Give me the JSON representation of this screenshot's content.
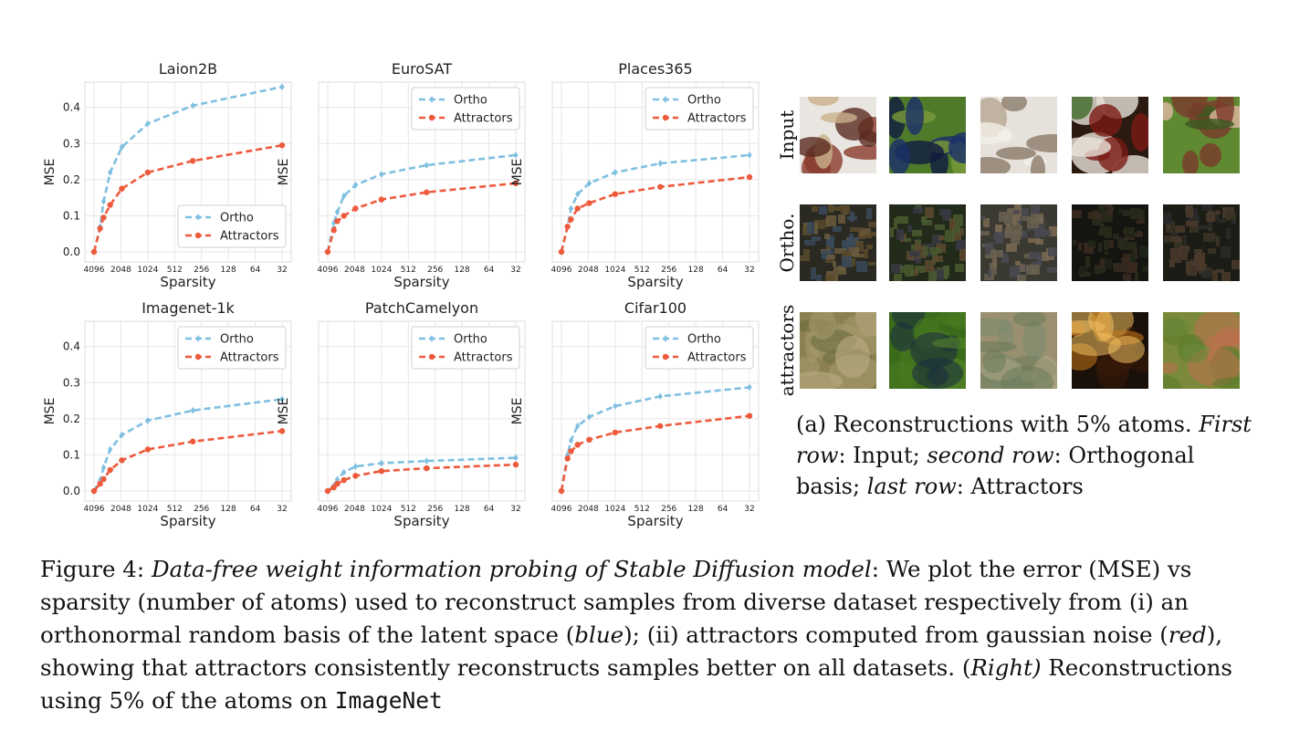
{
  "chart_data": [
    {
      "type": "line",
      "title": "Laion2B",
      "xlabel": "Sparsity",
      "ylabel": "MSE",
      "x_ticks": [
        "4096",
        "2048",
        "1024",
        "512",
        "256",
        "128",
        "64",
        "32"
      ],
      "y_ticks": [
        "0.0",
        "0.1",
        "0.2",
        "0.3",
        "0.4"
      ],
      "ylim": [
        0,
        0.47
      ],
      "legend": "lower-right",
      "grid": true,
      "series": [
        {
          "name": "Ortho",
          "color": "#7FBFE0",
          "marker": "diamond",
          "x": [
            4096,
            3500,
            3200,
            2700,
            2000,
            1024,
            320,
            32
          ],
          "y": [
            0.0,
            0.07,
            0.14,
            0.22,
            0.29,
            0.355,
            0.405,
            0.457
          ]
        },
        {
          "name": "Attractors",
          "color": "#EE5A3C",
          "marker": "circle",
          "x": [
            4096,
            3500,
            3200,
            2700,
            2000,
            1024,
            320,
            32
          ],
          "y": [
            0.0,
            0.065,
            0.095,
            0.13,
            0.175,
            0.22,
            0.252,
            0.295
          ]
        }
      ]
    },
    {
      "type": "line",
      "title": "EuroSAT",
      "xlabel": "Sparsity",
      "ylabel": "MSE",
      "x_ticks": [
        "4096",
        "2048",
        "1024",
        "512",
        "256",
        "128",
        "64",
        "32"
      ],
      "y_ticks": [],
      "ylim": [
        0,
        0.47
      ],
      "legend": "top-right",
      "grid": true,
      "series": [
        {
          "name": "Ortho",
          "color": "#7FBFE0",
          "marker": "diamond",
          "x": [
            4096,
            3500,
            3200,
            2700,
            2000,
            1024,
            320,
            32
          ],
          "y": [
            0.0,
            0.08,
            0.11,
            0.155,
            0.185,
            0.215,
            0.24,
            0.268
          ]
        },
        {
          "name": "Attractors",
          "color": "#EE5A3C",
          "marker": "circle",
          "x": [
            4096,
            3500,
            3200,
            2700,
            2000,
            1024,
            320,
            32
          ],
          "y": [
            0.0,
            0.06,
            0.085,
            0.1,
            0.12,
            0.145,
            0.165,
            0.19
          ]
        }
      ]
    },
    {
      "type": "line",
      "title": "Places365",
      "xlabel": "Sparsity",
      "ylabel": "MSE",
      "x_ticks": [
        "4096",
        "2048",
        "1024",
        "512",
        "256",
        "128",
        "64",
        "32"
      ],
      "y_ticks": [],
      "ylim": [
        0,
        0.47
      ],
      "legend": "top-right",
      "grid": true,
      "series": [
        {
          "name": "Ortho",
          "color": "#7FBFE0",
          "marker": "diamond",
          "x": [
            4096,
            3500,
            3200,
            2700,
            2000,
            1024,
            320,
            32
          ],
          "y": [
            0.0,
            0.07,
            0.12,
            0.16,
            0.19,
            0.22,
            0.245,
            0.268
          ]
        },
        {
          "name": "Attractors",
          "color": "#EE5A3C",
          "marker": "circle",
          "x": [
            4096,
            3500,
            3200,
            2700,
            2000,
            1024,
            320,
            32
          ],
          "y": [
            0.0,
            0.07,
            0.09,
            0.12,
            0.135,
            0.16,
            0.18,
            0.207
          ]
        }
      ]
    },
    {
      "type": "line",
      "title": "Imagenet-1k",
      "xlabel": "Sparsity",
      "ylabel": "MSE",
      "x_ticks": [
        "4096",
        "2048",
        "1024",
        "512",
        "256",
        "128",
        "64",
        "32"
      ],
      "y_ticks": [
        "0.0",
        "0.1",
        "0.2",
        "0.3",
        "0.4"
      ],
      "ylim": [
        0,
        0.47
      ],
      "legend": "top-right",
      "grid": true,
      "series": [
        {
          "name": "Ortho",
          "color": "#7FBFE0",
          "marker": "diamond",
          "x": [
            4096,
            3500,
            3200,
            2700,
            2000,
            1024,
            320,
            32
          ],
          "y": [
            0.0,
            0.03,
            0.065,
            0.115,
            0.155,
            0.195,
            0.223,
            0.254
          ]
        },
        {
          "name": "Attractors",
          "color": "#EE5A3C",
          "marker": "circle",
          "x": [
            4096,
            3500,
            3200,
            2700,
            2000,
            1024,
            320,
            32
          ],
          "y": [
            0.0,
            0.02,
            0.033,
            0.058,
            0.085,
            0.115,
            0.137,
            0.166
          ]
        }
      ]
    },
    {
      "type": "line",
      "title": "PatchCamelyon",
      "xlabel": "Sparsity",
      "ylabel": "MSE",
      "x_ticks": [
        "4096",
        "2048",
        "1024",
        "512",
        "256",
        "128",
        "64",
        "32"
      ],
      "y_ticks": [],
      "ylim": [
        0,
        0.47
      ],
      "legend": "top-right",
      "grid": true,
      "series": [
        {
          "name": "Ortho",
          "color": "#7FBFE0",
          "marker": "diamond",
          "x": [
            4096,
            3500,
            3200,
            2700,
            2000,
            1024,
            320,
            32
          ],
          "y": [
            0.0,
            0.015,
            0.032,
            0.052,
            0.068,
            0.077,
            0.083,
            0.092
          ]
        },
        {
          "name": "Attractors",
          "color": "#EE5A3C",
          "marker": "circle",
          "x": [
            4096,
            3500,
            3200,
            2700,
            2000,
            1024,
            320,
            32
          ],
          "y": [
            0.0,
            0.01,
            0.02,
            0.03,
            0.042,
            0.055,
            0.063,
            0.073
          ]
        }
      ]
    },
    {
      "type": "line",
      "title": "Cifar100",
      "xlabel": "Sparsity",
      "ylabel": "MSE",
      "x_ticks": [
        "4096",
        "2048",
        "1024",
        "512",
        "256",
        "128",
        "64",
        "32"
      ],
      "y_ticks": [],
      "ylim": [
        0,
        0.47
      ],
      "legend": "top-right",
      "grid": true,
      "series": [
        {
          "name": "Ortho",
          "color": "#7FBFE0",
          "marker": "diamond",
          "x": [
            4096,
            3500,
            3200,
            2700,
            2000,
            1024,
            320,
            32
          ],
          "y": [
            0.0,
            0.1,
            0.14,
            0.18,
            0.205,
            0.235,
            0.262,
            0.287
          ]
        },
        {
          "name": "Attractors",
          "color": "#EE5A3C",
          "marker": "circle",
          "x": [
            4096,
            3500,
            3200,
            2700,
            2000,
            1024,
            320,
            32
          ],
          "y": [
            0.0,
            0.09,
            0.11,
            0.128,
            0.142,
            0.162,
            0.18,
            0.208
          ]
        }
      ]
    }
  ],
  "reconstructions": {
    "row_labels": [
      "Input",
      "Ortho.",
      "attractors"
    ],
    "rows": [
      [
        {
          "name": "book-photo",
          "colors": [
            "#e9e6e2",
            "#8a3b2c",
            "#c9b08c",
            "#5a2a20"
          ]
        },
        {
          "name": "ball-on-grass-photo",
          "colors": [
            "#4f7a2a",
            "#1c2f6a",
            "#7a9b3a",
            "#0f1a40"
          ]
        },
        {
          "name": "shoes-photo",
          "colors": [
            "#e6e1da",
            "#b8a894",
            "#8c7c6a",
            "#f2efe9"
          ]
        },
        {
          "name": "leaves-photo",
          "colors": [
            "#2a1a10",
            "#7a1a14",
            "#3f6a2a",
            "#e8e2d8"
          ]
        },
        {
          "name": "hand-grass-photo",
          "colors": [
            "#5f8a32",
            "#3a5a20",
            "#7a3a2a",
            "#e0b8a0"
          ]
        }
      ],
      [
        {
          "name": "ortho-recon-1",
          "colors": [
            "#2a2a22",
            "#5a4a2c",
            "#3a4a5a",
            "#6a5a3c"
          ]
        },
        {
          "name": "ortho-recon-2",
          "colors": [
            "#222a1a",
            "#4a5a30",
            "#3a3a44",
            "#5a4a30"
          ]
        },
        {
          "name": "ortho-recon-3",
          "colors": [
            "#3a3a32",
            "#6a6050",
            "#4a4a52",
            "#7a6a52"
          ]
        },
        {
          "name": "ortho-recon-4",
          "colors": [
            "#141410",
            "#2a2a1c",
            "#3a2a20",
            "#1f2418"
          ]
        },
        {
          "name": "ortho-recon-5",
          "colors": [
            "#1c1c16",
            "#3a3424",
            "#2a2a2a",
            "#4a3a2a"
          ]
        }
      ],
      [
        {
          "name": "attractor-recon-1",
          "colors": [
            "#8a8050",
            "#a89a70",
            "#6a6a3a",
            "#c0b088"
          ]
        },
        {
          "name": "attractor-recon-2",
          "colors": [
            "#3a6a1a",
            "#5a8a2a",
            "#1a2a40",
            "#4a7a20"
          ]
        },
        {
          "name": "attractor-recon-3",
          "colors": [
            "#9a9070",
            "#7a8a70",
            "#b0a888",
            "#6a7a5a"
          ]
        },
        {
          "name": "attractor-recon-4",
          "colors": [
            "#1a100a",
            "#c8781a",
            "#f0c060",
            "#3a1a0a"
          ]
        },
        {
          "name": "attractor-recon-5",
          "colors": [
            "#7a8a3a",
            "#5a7a2a",
            "#c07050",
            "#6a8a3a"
          ]
        }
      ]
    ]
  },
  "sub_caption": {
    "lead": "(a) Reconstructions with 5% atoms. ",
    "first_row_em": "First row",
    "first_row_text": ": Input; ",
    "second_row_em": "second row",
    "second_row_text": ": Orthogonal basis; ",
    "last_row_em": "last row",
    "last_row_text": ": Attractors"
  },
  "figure_caption": {
    "label": "Figure 4: ",
    "title_em": "Data-free weight information probing of Stable Diffusion model",
    "text1": ": We plot the error (MSE) vs sparsity (number of atoms) used to reconstruct samples from diverse dataset respectively from (i) an orthonormal random basis of the latent space (",
    "blue_em": "blue",
    "text2": "); (ii) attractors computed from gaussian noise (",
    "red_em": "red",
    "text3": "), showing that attractors consistently reconstructs samples better on all datasets. (",
    "right_em": "Right)",
    "text4": " Reconstructions using 5% of the atoms on ",
    "dataset_mono": "ImageNet"
  }
}
